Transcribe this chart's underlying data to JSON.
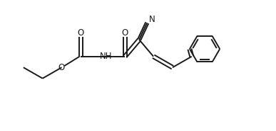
{
  "bg_color": "#ffffff",
  "line_color": "#1a1a1a",
  "line_width": 1.4,
  "text_color": "#1a1a1a",
  "font_size": 8.5,
  "xlim": [
    0,
    10
  ],
  "ylim": [
    0,
    5
  ]
}
